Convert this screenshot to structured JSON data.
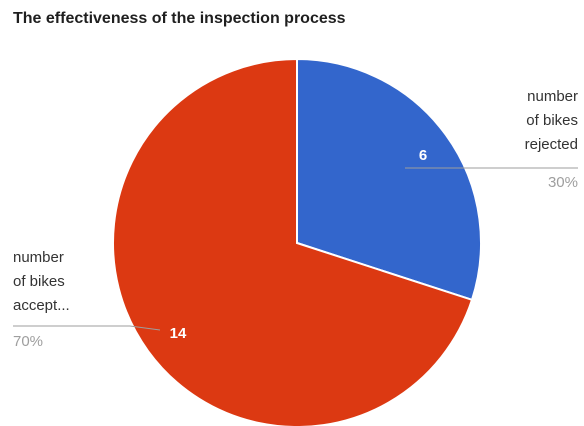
{
  "chart_data": {
    "type": "pie",
    "title": "The effectiveness of the inspection process",
    "slices": [
      {
        "label_lines": [
          "number",
          "of bikes",
          "rejected"
        ],
        "value": 6,
        "percent": "30%",
        "color": "#3366cc"
      },
      {
        "label_lines": [
          "number",
          "of bikes",
          "accept..."
        ],
        "value": 14,
        "percent": "70%",
        "color": "#dc3912"
      }
    ],
    "legend": "none",
    "slice_border_color": "#ffffff"
  }
}
